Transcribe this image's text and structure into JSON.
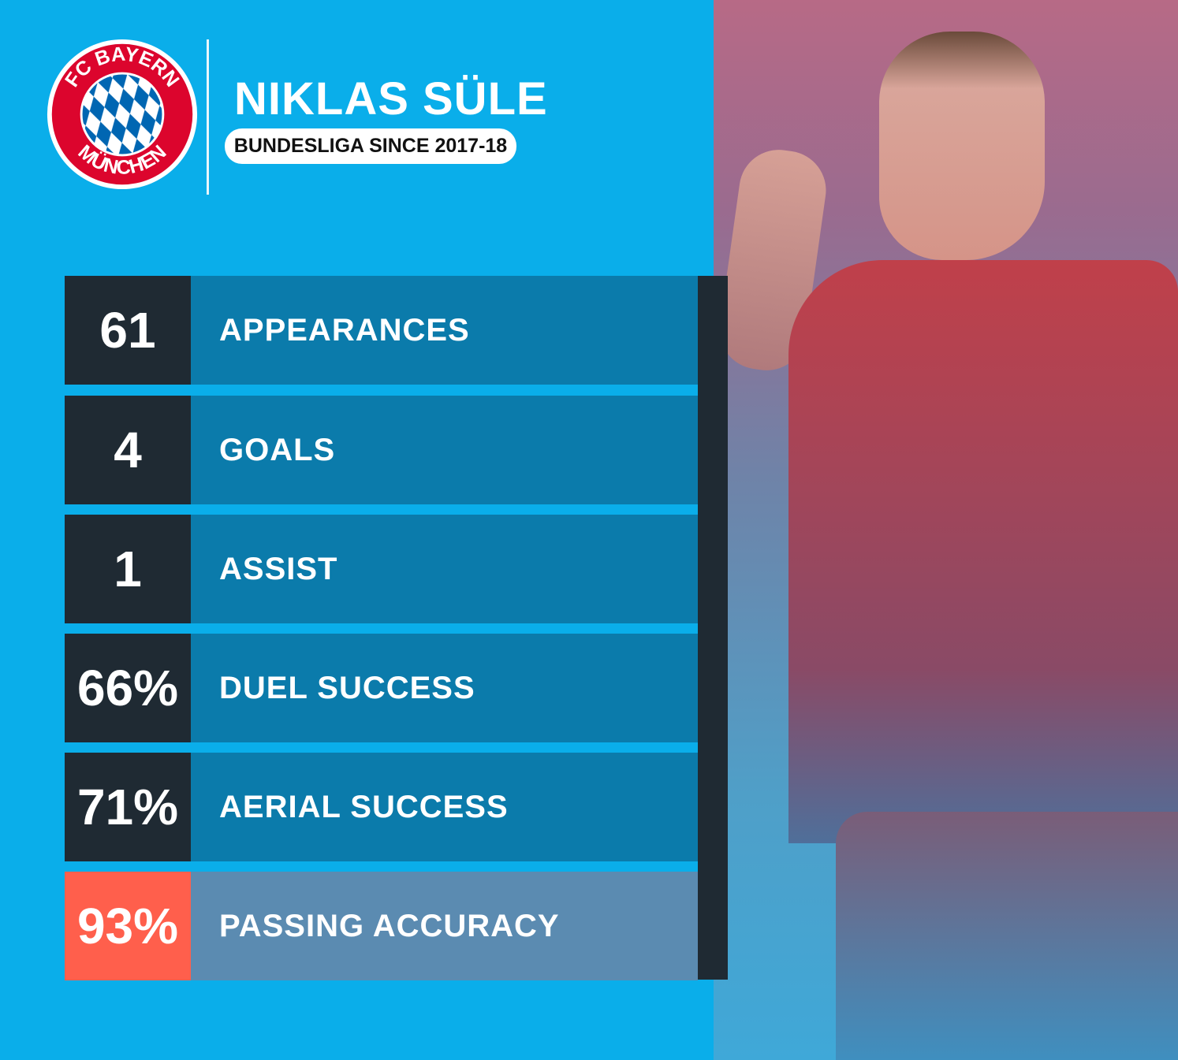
{
  "logo": {
    "text_top": "FC BAYERN",
    "text_bottom": "MÜNCHEN",
    "colors": {
      "ring": "#dc052d",
      "blue": "#0066b2",
      "white": "#ffffff"
    }
  },
  "player": {
    "name": "NIKLAS SÜLE",
    "subtitle": "BUNDESLIGA SINCE 2017-18"
  },
  "stats": [
    {
      "value": "61",
      "label": "APPEARANCES"
    },
    {
      "value": "4",
      "label": "GOALS"
    },
    {
      "value": "1",
      "label": "ASSIST"
    },
    {
      "value": "66%",
      "label": "DUEL SUCCESS"
    },
    {
      "value": "71%",
      "label": "AERIAL SUCCESS"
    },
    {
      "value": "93%",
      "label": "PASSING ACCURACY",
      "highlight": true
    }
  ],
  "colors": {
    "background": "#0aaeea",
    "number_box": "#1f2a33",
    "label_box": "#0b7bab",
    "highlight_number": "#ff5f4c",
    "highlight_label": "#5b8bb1"
  }
}
